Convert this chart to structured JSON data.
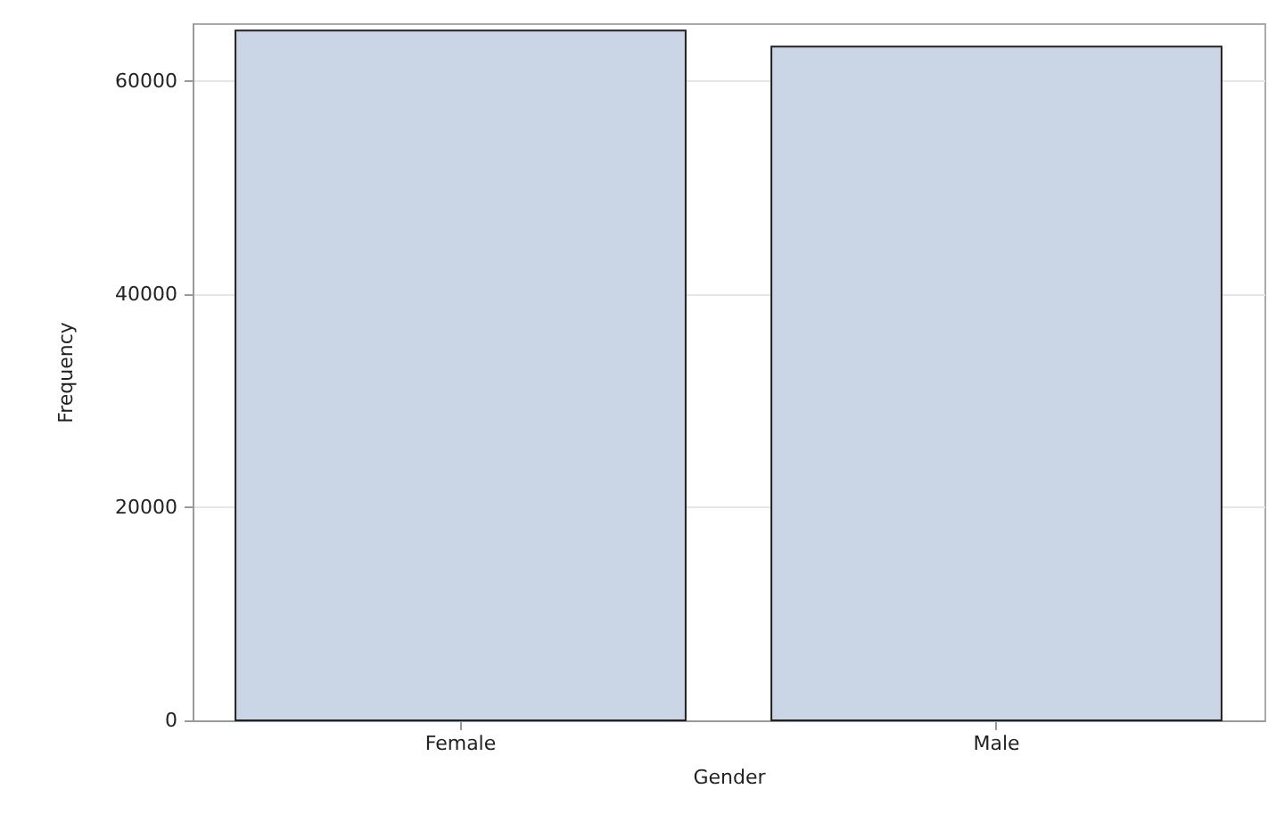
{
  "chart_data": {
    "type": "bar",
    "xlabel": "Gender",
    "ylabel": "Frequency",
    "categories": [
      "Female",
      "Male"
    ],
    "values": [
      64700,
      63200
    ],
    "color": "#cad5e5",
    "ylim": [
      0,
      65400
    ],
    "yticks": [
      0,
      20000,
      40000,
      60000
    ],
    "grid": "y"
  }
}
